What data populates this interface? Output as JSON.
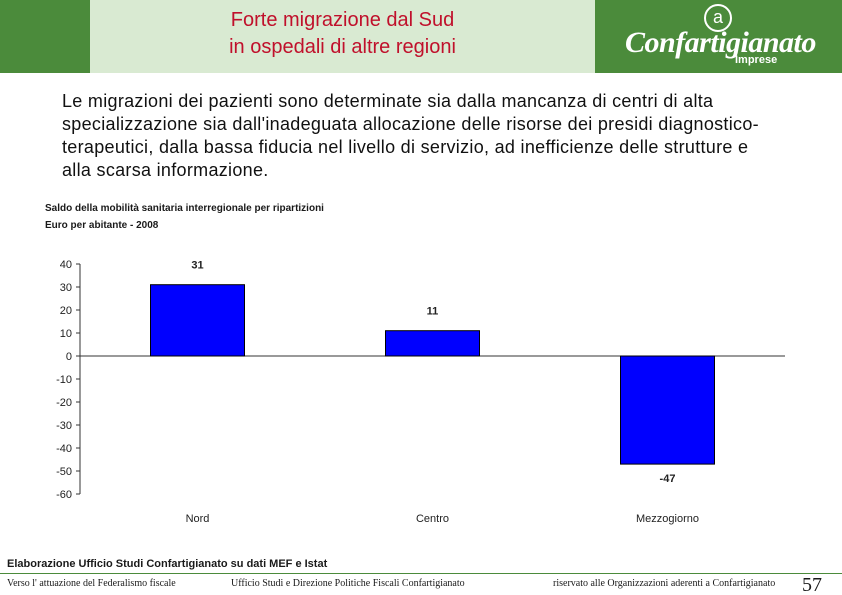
{
  "header": {
    "title": "Forte migrazione dal Sud\nin ospedali di altre regioni",
    "logo_symbol": "a",
    "logo_text": "Confartigianato",
    "logo_subtext": "Imprese"
  },
  "intro": "Le migrazioni dei pazienti sono determinate sia dalla mancanza di centri di alta specializzazione sia dall'inadeguata allocazione delle risorse dei presidi diagnostico-terapeutici, dalla bassa fiducia nel livello di servizio, ad inefficienze delle strutture e alla scarsa informazione.",
  "chart_data": {
    "type": "bar",
    "title": "Saldo della mobilità sanitaria interregionale per ripartizioni",
    "subtitle": "Euro per abitante - 2008",
    "categories": [
      "Nord",
      "Centro",
      "Mezzogiorno"
    ],
    "values": [
      31,
      11,
      -47
    ],
    "data_labels": [
      "31",
      "11",
      "-47"
    ],
    "ylim": [
      -60,
      40
    ],
    "yticks": [
      40,
      30,
      20,
      10,
      0,
      -10,
      -20,
      -30,
      -40,
      -50,
      -60
    ],
    "xlabel": "",
    "ylabel": "",
    "grid": false,
    "bar_color": "#0000ff"
  },
  "source": "Elaborazione Ufficio Studi Confartigianato su dati MEF e Istat",
  "footer": {
    "left": "Verso l' attuazione del Federalismo fiscale",
    "center": "Ufficio Studi e Direzione Politiche Fiscali Confartigianato",
    "right": "riservato alle Organizzazioni aderenti a Confartigianato",
    "page": "57"
  },
  "colors": {
    "brand_green": "#4b8b3b",
    "title_red": "#c0102b",
    "title_bg": "#d9ead2"
  }
}
